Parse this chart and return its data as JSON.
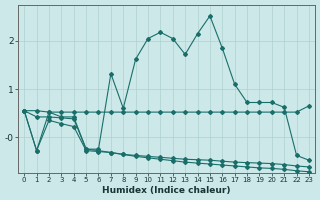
{
  "title": "",
  "xlabel": "Humidex (Indice chaleur)",
  "bg_color": "#cce8e8",
  "line_color": "#1a6e6a",
  "grid_color": "#b0d0d0",
  "xlim": [
    -0.5,
    23.5
  ],
  "ylim": [
    -0.75,
    2.75
  ],
  "yticks": [
    2,
    1,
    0
  ],
  "ytick_labels": [
    "2",
    "1",
    "-0"
  ],
  "xticks": [
    0,
    1,
    2,
    3,
    4,
    5,
    6,
    7,
    8,
    9,
    10,
    11,
    12,
    13,
    14,
    15,
    16,
    17,
    18,
    19,
    20,
    21,
    22,
    23
  ],
  "line1_x": [
    0,
    1,
    2,
    3,
    4,
    5,
    6,
    7,
    8,
    9,
    10,
    11,
    12,
    13,
    14,
    15,
    16,
    17,
    18,
    19,
    20,
    21,
    22,
    23
  ],
  "line1_y": [
    0.55,
    -0.28,
    0.52,
    0.42,
    0.42,
    -0.25,
    -0.25,
    1.32,
    0.6,
    1.62,
    2.05,
    2.18,
    2.05,
    1.72,
    2.15,
    2.52,
    1.85,
    1.1,
    0.72,
    0.72,
    0.72,
    0.62,
    -0.38,
    -0.48
  ],
  "line2_x": [
    0,
    1,
    2,
    3,
    4,
    5,
    6,
    7,
    8,
    9,
    10,
    11,
    12,
    13,
    14,
    15,
    16,
    17,
    18,
    19,
    20,
    21,
    22,
    23
  ],
  "line2_y": [
    0.55,
    0.55,
    0.52,
    0.52,
    0.52,
    0.52,
    0.52,
    0.52,
    0.52,
    0.52,
    0.52,
    0.52,
    0.52,
    0.52,
    0.52,
    0.52,
    0.52,
    0.52,
    0.52,
    0.52,
    0.52,
    0.52,
    0.52,
    0.65
  ],
  "line3_x": [
    0,
    1,
    2,
    3,
    4,
    5,
    6,
    7,
    8,
    9,
    10,
    11,
    12,
    13,
    14,
    15,
    16,
    17,
    18,
    19,
    20,
    21,
    22,
    23
  ],
  "line3_y": [
    0.55,
    -0.28,
    0.35,
    0.28,
    0.22,
    -0.28,
    -0.3,
    -0.32,
    -0.36,
    -0.38,
    -0.4,
    -0.42,
    -0.44,
    -0.46,
    -0.47,
    -0.48,
    -0.5,
    -0.52,
    -0.53,
    -0.54,
    -0.55,
    -0.57,
    -0.6,
    -0.62
  ],
  "line4_x": [
    0,
    1,
    2,
    3,
    4,
    5,
    6,
    7,
    8,
    9,
    10,
    11,
    12,
    13,
    14,
    15,
    16,
    17,
    18,
    19,
    20,
    21,
    22,
    23
  ],
  "line4_y": [
    0.55,
    0.42,
    0.42,
    0.4,
    0.38,
    -0.25,
    -0.28,
    -0.32,
    -0.36,
    -0.4,
    -0.43,
    -0.46,
    -0.49,
    -0.52,
    -0.54,
    -0.56,
    -0.58,
    -0.6,
    -0.62,
    -0.64,
    -0.65,
    -0.67,
    -0.7,
    -0.72
  ]
}
